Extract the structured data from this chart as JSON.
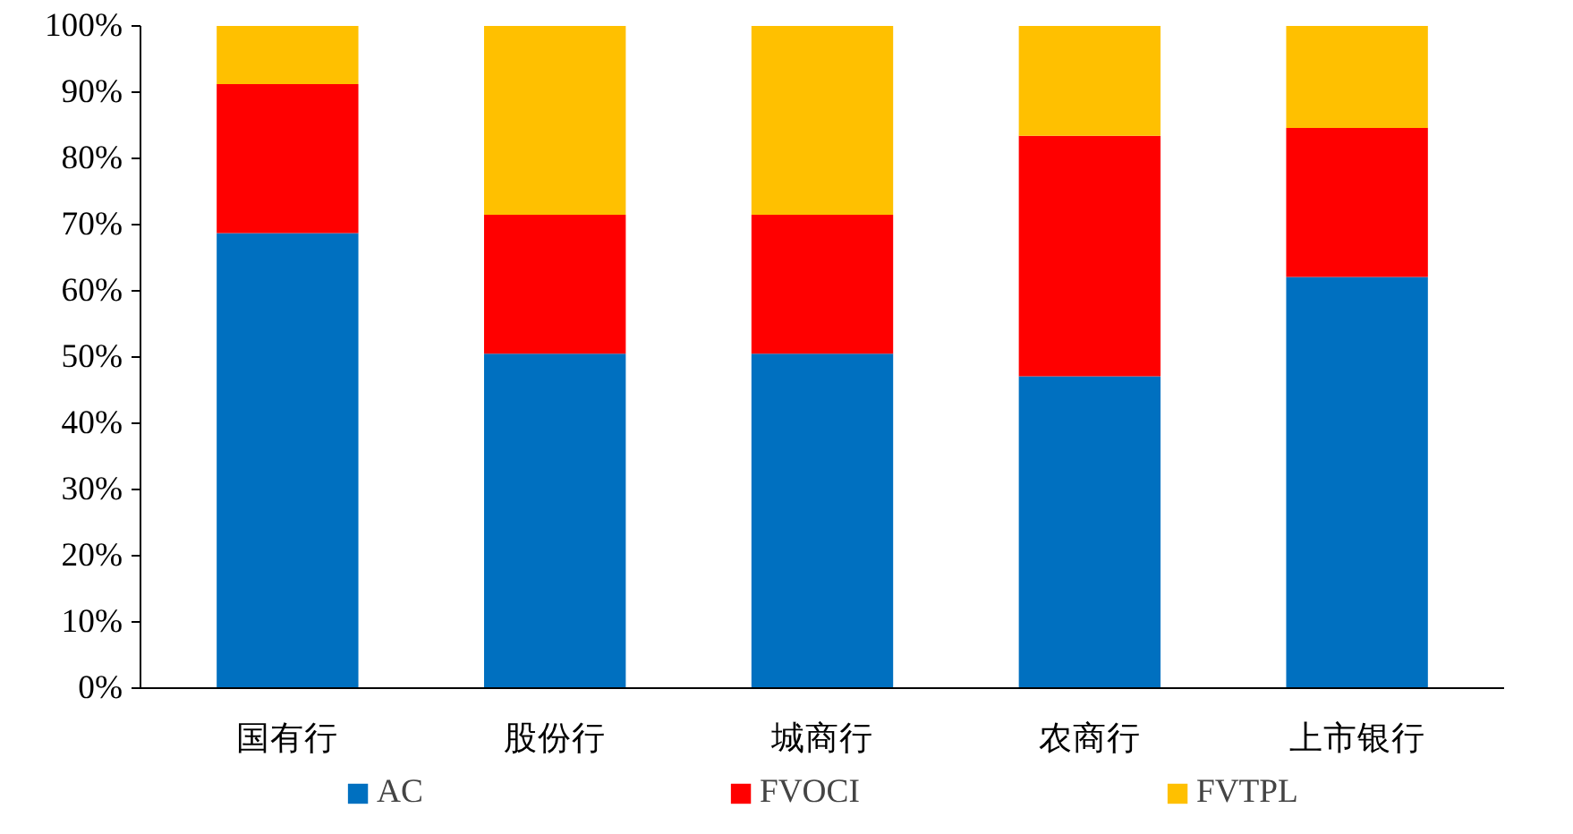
{
  "chart_data": {
    "type": "bar",
    "stacked": true,
    "categories": [
      "国有行",
      "股份行",
      "城商行",
      "农商行",
      "上市银行"
    ],
    "series": [
      {
        "name": "AC",
        "color": "#0070c0",
        "values": [
          68.7,
          50.5,
          50.5,
          47.1,
          62.1
        ]
      },
      {
        "name": "FVOCI",
        "color": "#ff0000",
        "values": [
          22.5,
          21.0,
          21.0,
          36.3,
          22.5
        ]
      },
      {
        "name": "FVTPL",
        "color": "#ffc000",
        "values": [
          8.8,
          28.5,
          28.5,
          16.6,
          15.4
        ]
      }
    ],
    "ylim": [
      0,
      100
    ],
    "yticks": [
      {
        "value": 0,
        "label": "0%"
      },
      {
        "value": 10,
        "label": "10%"
      },
      {
        "value": 20,
        "label": "20%"
      },
      {
        "value": 30,
        "label": "30%"
      },
      {
        "value": 40,
        "label": "40%"
      },
      {
        "value": 50,
        "label": "50%"
      },
      {
        "value": 60,
        "label": "60%"
      },
      {
        "value": 70,
        "label": "70%"
      },
      {
        "value": 80,
        "label": "80%"
      },
      {
        "value": 90,
        "label": "90%"
      },
      {
        "value": 100,
        "label": "100%"
      }
    ],
    "grid": false,
    "legend": "bottom"
  }
}
